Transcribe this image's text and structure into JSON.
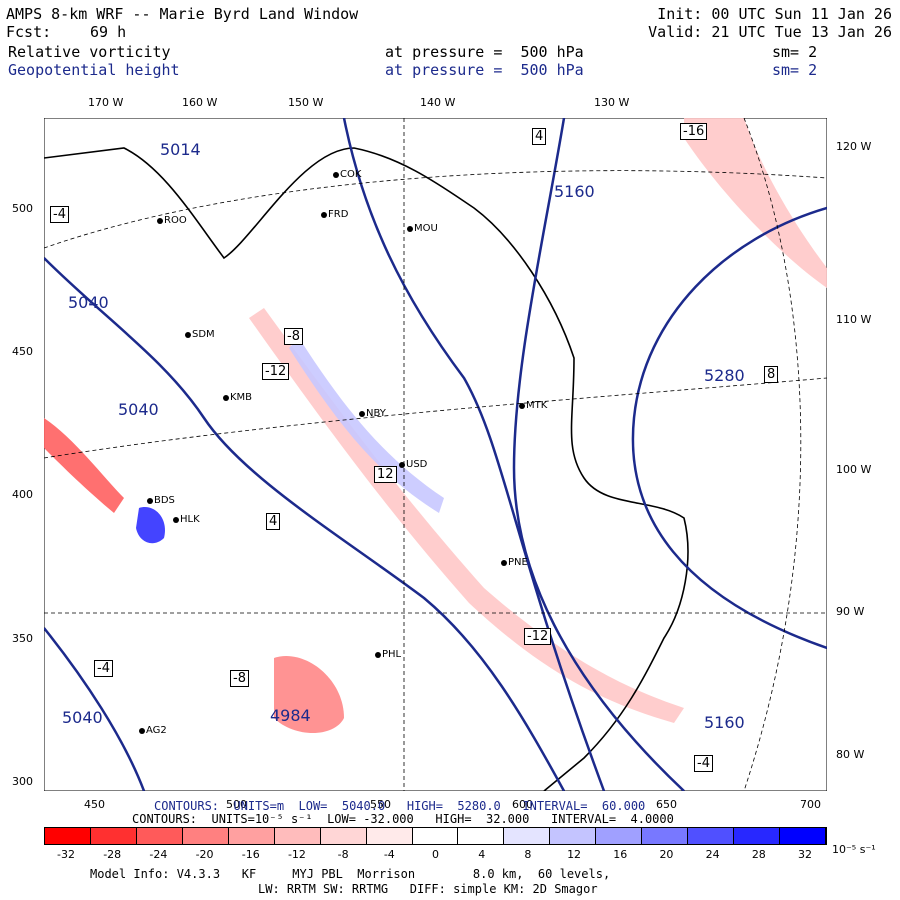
{
  "header": {
    "model_title": "AMPS 8-km WRF -- Marie Byrd Land Window",
    "fcst_label": "Fcst:",
    "fcst_value": "69 h",
    "init": "Init: 00 UTC Sun 11 Jan 26",
    "valid": "Valid: 21 UTC Tue 13 Jan 26"
  },
  "fields": [
    {
      "name": "Relative vorticity",
      "level": "at pressure =  500 hPa",
      "smooth": "sm= 2"
    },
    {
      "name": "Geopotential height",
      "level": "at pressure =  500 hPa",
      "smooth": "sm= 2"
    }
  ],
  "axes": {
    "top_lon_labels": [
      "170 W",
      "160 W",
      "150 W",
      "140 W",
      "130 W"
    ],
    "right_lon_labels": [
      "120 W",
      "110 W",
      "100 W",
      "90 W",
      "80 W"
    ],
    "left_y_labels": [
      "500",
      "450",
      "400",
      "350",
      "300"
    ],
    "bottom_x_labels": [
      "450",
      "500",
      "550",
      "600",
      "650",
      "700"
    ]
  },
  "stations": [
    "ROO",
    "FRD",
    "MOU",
    "SDM",
    "KMB",
    "NBY",
    "MTK",
    "USD",
    "PNE",
    "BDS",
    "HLK",
    "PHL",
    "AG2",
    "COK"
  ],
  "vorticity_labels": [
    "-4",
    "-8",
    "-12",
    "-16",
    "4",
    "8",
    "12"
  ],
  "height_labels": [
    "5040",
    "5160",
    "5280",
    "5014",
    "4984"
  ],
  "contour_lines": {
    "height_line": "CONTOURS:  UNITS=m  LOW=  5040.0   HIGH=  5280.0   INTERVAL=  60.000",
    "vort_line": "CONTOURS:  UNITS=10⁻⁵ s⁻¹  LOW= -32.000   HIGH=  32.000   INTERVAL=  4.0000"
  },
  "colorbar": {
    "labels": [
      "-32",
      "-28",
      "-24",
      "-20",
      "-16",
      "-12",
      "-8",
      "-4",
      "0",
      "4",
      "8",
      "12",
      "16",
      "20",
      "24",
      "28",
      "32"
    ],
    "units": "10⁻⁵ s⁻¹",
    "colors": [
      "#ff0000",
      "#ff3030",
      "#ff5a5a",
      "#ff8080",
      "#ffa0a0",
      "#ffbcbc",
      "#ffd6d6",
      "#ffeaea",
      "#ffffff",
      "#ffffff",
      "#e4e4ff",
      "#c4c4ff",
      "#a0a0ff",
      "#7878ff",
      "#5050ff",
      "#2828ff",
      "#0000ff"
    ]
  },
  "footer": {
    "model_info": "Model Info: V4.3.3   KF     MYJ PBL  Morrison        8.0 km,  60 levels,",
    "physics": "LW: RRTM SW: RRTMG   DIFF: simple KM: 2D Smagor"
  }
}
